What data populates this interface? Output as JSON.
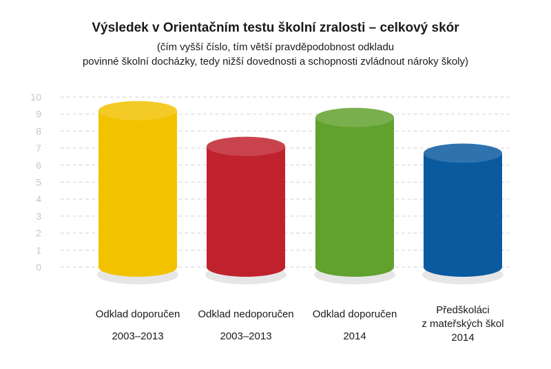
{
  "chart_data": {
    "type": "bar",
    "title": "Výsledek v Orientačním testu školní zralosti – celkový skór",
    "subtitle_lines": [
      "(čím vyšší číslo, tím větší pravděpodobnost odkladu",
      "povinné školní docházky, tedy nižší dovednosti a schopnosti zvládnout nároky školy)"
    ],
    "categories": [
      {
        "lines": [
          "Odklad doporučen",
          "2003–2013"
        ]
      },
      {
        "lines": [
          "Odklad nedoporučen",
          "2003–2013"
        ]
      },
      {
        "lines": [
          "Odklad doporučen",
          "2014"
        ]
      },
      {
        "lines": [
          "Předškoláci",
          "z mateřských škol",
          "2014"
        ]
      }
    ],
    "values": [
      9.2,
      7.1,
      8.8,
      6.7
    ],
    "colors": [
      "#f2c200",
      "#c0222d",
      "#61a12e",
      "#0a5aa0"
    ],
    "ylim": [
      0,
      10
    ],
    "yticks": [
      "0",
      "1",
      "2",
      "3",
      "4",
      "5",
      "6",
      "7",
      "8",
      "9",
      "10"
    ],
    "grid": true,
    "xlabel": "",
    "ylabel": ""
  }
}
